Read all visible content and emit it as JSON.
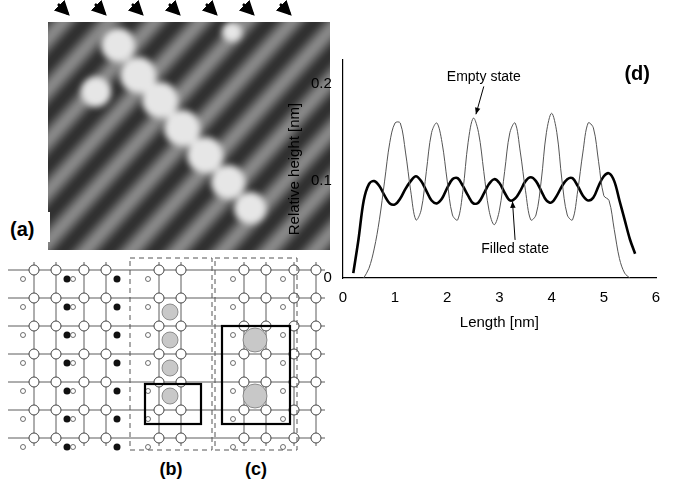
{
  "image": {
    "label": "(a)"
  },
  "diagram": {
    "labels": [
      "(b)",
      "(c)"
    ]
  },
  "chart_data": {
    "type": "line",
    "title": "(d)",
    "x_label": "Length [nm]",
    "y_label": "Relative height [nm]",
    "xlim": [
      0,
      6
    ],
    "xticks": [
      0,
      1,
      2,
      3,
      4,
      5,
      6
    ],
    "ylim": [
      0,
      0.225
    ],
    "yticks": [
      0,
      0.1,
      0.2
    ],
    "grid": false,
    "x": [
      0.2,
      0.3,
      0.4,
      0.5,
      0.6,
      0.7,
      0.8,
      0.9,
      1.0,
      1.1,
      1.2,
      1.3,
      1.4,
      1.5,
      1.6,
      1.7,
      1.8,
      1.9,
      2.0,
      2.1,
      2.2,
      2.3,
      2.4,
      2.5,
      2.6,
      2.7,
      2.8,
      2.9,
      3.0,
      3.1,
      3.2,
      3.3,
      3.4,
      3.5,
      3.6,
      3.7,
      3.8,
      3.9,
      4.0,
      4.1,
      4.2,
      4.3,
      4.4,
      4.5,
      4.6,
      4.7,
      4.8,
      4.9,
      5.0,
      5.1,
      5.2,
      5.3,
      5.4,
      5.5,
      5.6
    ],
    "series": [
      {
        "name": "Empty state",
        "color": "#555555",
        "line_style": "solid",
        "values": [
          null,
          null,
          0.0,
          0.01,
          0.03,
          0.06,
          0.1,
          0.14,
          0.16,
          0.16,
          0.13,
          0.09,
          0.06,
          0.07,
          0.11,
          0.15,
          0.16,
          0.14,
          0.1,
          0.065,
          0.06,
          0.09,
          0.14,
          0.165,
          0.15,
          0.11,
          0.07,
          0.055,
          0.07,
          0.11,
          0.15,
          0.16,
          0.13,
          0.09,
          0.06,
          0.065,
          0.1,
          0.15,
          0.17,
          0.15,
          0.1,
          0.065,
          0.06,
          0.09,
          0.13,
          0.16,
          0.155,
          0.12,
          0.085,
          0.08,
          0.05,
          0.02,
          0.005,
          0.0,
          null
        ]
      },
      {
        "name": "Filled state",
        "color": "#000000",
        "line_style": "solid",
        "values": [
          0.005,
          0.04,
          0.08,
          0.097,
          0.1,
          0.095,
          0.085,
          0.077,
          0.076,
          0.082,
          0.092,
          0.1,
          0.105,
          0.1,
          0.09,
          0.08,
          0.077,
          0.082,
          0.093,
          0.102,
          0.103,
          0.095,
          0.085,
          0.077,
          0.078,
          0.087,
          0.097,
          0.102,
          0.098,
          0.088,
          0.08,
          0.082,
          0.09,
          0.1,
          0.104,
          0.1,
          0.09,
          0.08,
          0.078,
          0.085,
          0.095,
          0.102,
          0.103,
          0.095,
          0.085,
          0.08,
          0.083,
          0.095,
          0.105,
          0.108,
          0.1,
          0.08,
          0.06,
          0.04,
          0.025
        ]
      }
    ]
  }
}
